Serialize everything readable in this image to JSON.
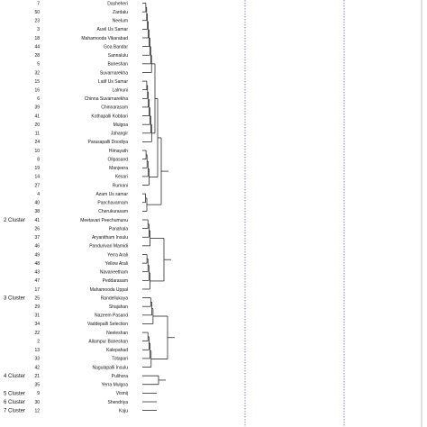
{
  "dendrogram": {
    "leaves": [
      {
        "num": "7",
        "name": "Dasheheri"
      },
      {
        "num": "50",
        "name": "Zardalu"
      },
      {
        "num": "23",
        "name": "Neelum"
      },
      {
        "num": "3",
        "name": "Auvil Us Samar"
      },
      {
        "num": "18",
        "name": "Mahamooda Vikarabad"
      },
      {
        "num": "44",
        "name": "Goa Bandar"
      },
      {
        "num": "28",
        "name": "Sannalulu"
      },
      {
        "num": "5",
        "name": "Baneshan"
      },
      {
        "num": "32",
        "name": "Suvarnarekha"
      },
      {
        "num": "15",
        "name": "Latif Us Samar"
      },
      {
        "num": "16",
        "name": "Lalmuni"
      },
      {
        "num": "6",
        "name": "Chinna Suvarnarekha"
      },
      {
        "num": "39",
        "name": "Chinnarasam"
      },
      {
        "num": "41",
        "name": "Kothapalli Kobbari"
      },
      {
        "num": "20",
        "name": "Mulgoa"
      },
      {
        "num": "11",
        "name": "Jahangir"
      },
      {
        "num": "24",
        "name": "Parasapalli Doodiya"
      },
      {
        "num": "10",
        "name": "Himayath"
      },
      {
        "num": "8",
        "name": "Ollpasand"
      },
      {
        "num": "19",
        "name": "Manjeera"
      },
      {
        "num": "14",
        "name": "Kesari"
      },
      {
        "num": "27",
        "name": "Rumani"
      },
      {
        "num": "4",
        "name": "Azam Us samar"
      },
      {
        "num": "40",
        "name": "Panchavarnam"
      },
      {
        "num": "38",
        "name": "Cherukurasam"
      },
      {
        "num": "41",
        "name": "Meetavari Peechumunu"
      },
      {
        "num": "26",
        "name": "Panahala"
      },
      {
        "num": "37",
        "name": "Aryanitham Insulu"
      },
      {
        "num": "46",
        "name": "Pandurivari Mamidi"
      },
      {
        "num": "49",
        "name": "Yerra Arali"
      },
      {
        "num": "48",
        "name": "Yellow Arali"
      },
      {
        "num": "43",
        "name": "Navaneetham"
      },
      {
        "num": "47",
        "name": "Peddarasam"
      },
      {
        "num": "17",
        "name": "Mahamooda Uppal"
      },
      {
        "num": "25",
        "name": "Randellukaya"
      },
      {
        "num": "29",
        "name": "Shajahan"
      },
      {
        "num": "31",
        "name": "Nazeem Pasand"
      },
      {
        "num": "34",
        "name": "Vaddepalli Selection"
      },
      {
        "num": "22",
        "name": "Neeleshan"
      },
      {
        "num": "2",
        "name": "Allampur Baneshan"
      },
      {
        "num": "13",
        "name": "Kalepahad"
      },
      {
        "num": "33",
        "name": "Totapari"
      },
      {
        "num": "42",
        "name": "Nagulapalli Insulu"
      },
      {
        "num": "21",
        "name": "Pulihora"
      },
      {
        "num": "35",
        "name": "Yerra Mulgoa"
      },
      {
        "num": "9",
        "name": "Vismij"
      },
      {
        "num": "30",
        "name": "Shendriya"
      },
      {
        "num": "12",
        "name": "Kaju"
      }
    ],
    "cluster_labels": [
      {
        "text": "2 Cluster",
        "at_leaf": 25
      },
      {
        "text": "3 Cluster",
        "at_leaf": 34
      },
      {
        "text": "4 Cluster",
        "at_leaf": 43
      },
      {
        "text": "5 Cluster",
        "at_leaf": 45
      },
      {
        "text": "6 Cluster",
        "at_leaf": 46
      },
      {
        "text": "7 Cluster",
        "at_leaf": 47
      }
    ],
    "line_color": "#111111",
    "guide_color": "#3a3acc"
  }
}
